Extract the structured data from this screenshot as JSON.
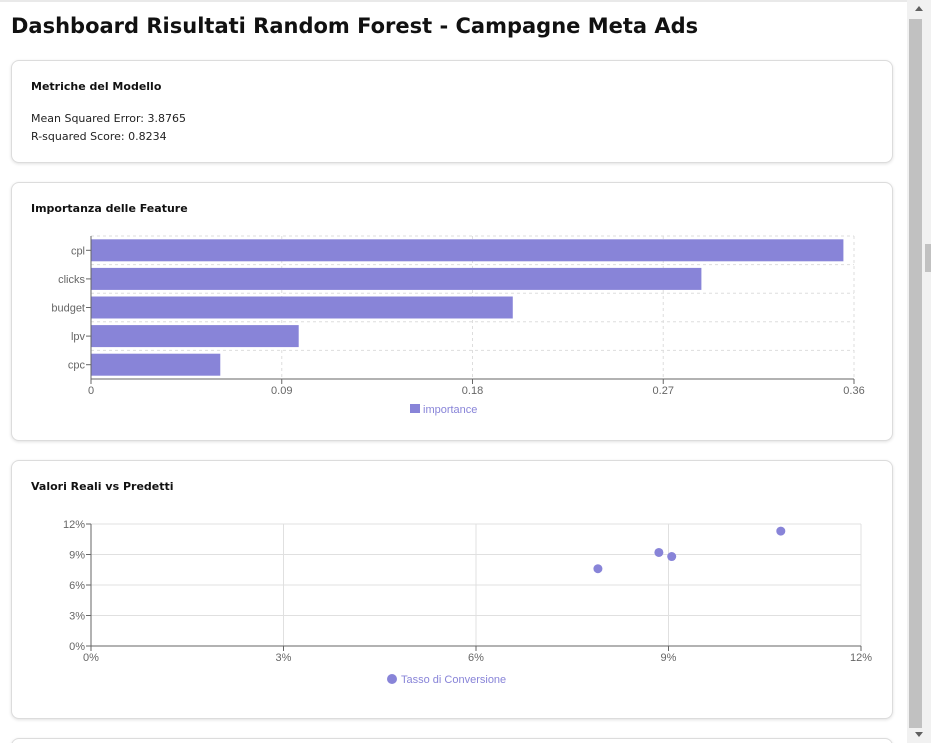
{
  "header": {
    "title": "Dashboard Risultati Random Forest - Campagne Meta Ads"
  },
  "metrics": {
    "title": "Metriche del Modello",
    "mse": "Mean Squared Error: 3.8765",
    "r2": "R-squared Score: 0.8234"
  },
  "feature_card": {
    "title": "Importanza delle Feature"
  },
  "scatter_card": {
    "title": "Valori Reali vs Predetti"
  },
  "colors": {
    "accent": "#8884d8",
    "grid": "#e0e0e0",
    "axis": "#666666"
  },
  "chart_data": [
    {
      "type": "bar",
      "orientation": "horizontal",
      "categories": [
        "cpl",
        "clicks",
        "budget",
        "lpv",
        "cpc"
      ],
      "series": [
        {
          "name": "importance",
          "values": [
            0.355,
            0.288,
            0.199,
            0.098,
            0.061
          ]
        }
      ],
      "xlim": [
        0,
        0.36
      ],
      "xticks": [
        "0",
        "0.09",
        "0.18",
        "0.27",
        "0.36"
      ],
      "grid": true,
      "legend": "bottom-center"
    },
    {
      "type": "scatter",
      "series": [
        {
          "name": "Tasso di Conversione",
          "points": [
            {
              "x": 7.9,
              "y": 7.6
            },
            {
              "x": 8.85,
              "y": 9.2
            },
            {
              "x": 9.05,
              "y": 8.8
            },
            {
              "x": 10.75,
              "y": 11.3
            }
          ]
        }
      ],
      "xlim": [
        0,
        12
      ],
      "ylim": [
        0,
        12
      ],
      "xticks": [
        "0%",
        "3%",
        "6%",
        "9%",
        "12%"
      ],
      "yticks": [
        "0%",
        "3%",
        "6%",
        "9%",
        "12%"
      ],
      "grid": true,
      "legend": "bottom-center"
    }
  ]
}
